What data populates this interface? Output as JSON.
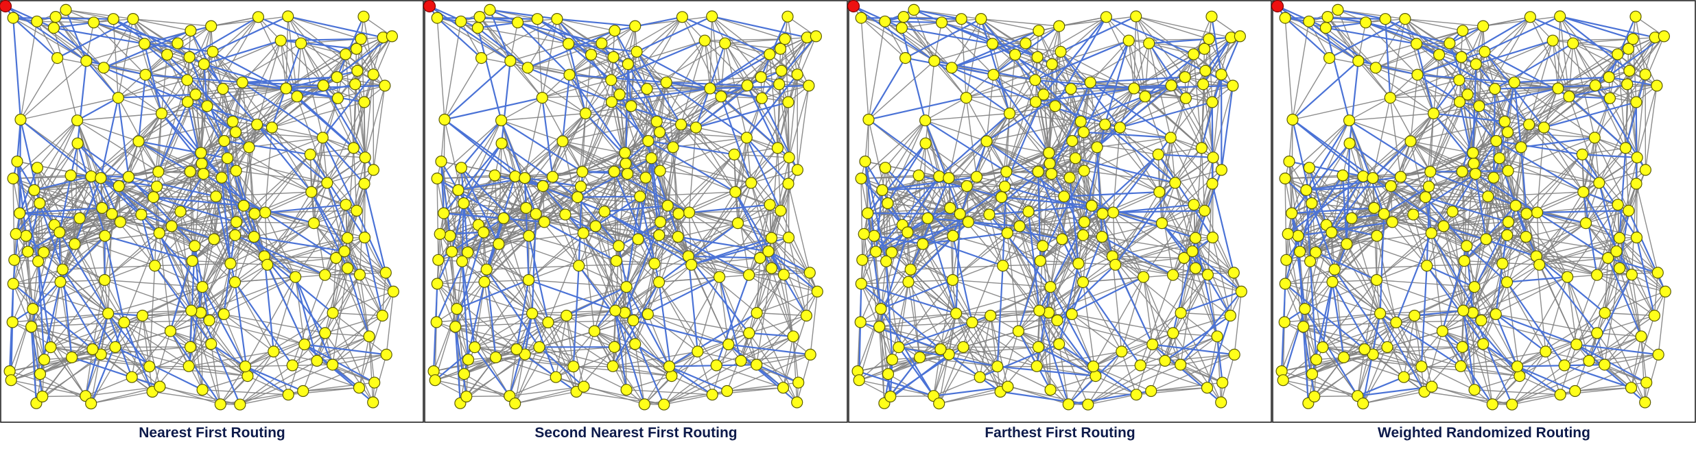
{
  "figure": {
    "panels": [
      {
        "caption": "Nearest First Routing"
      },
      {
        "caption": "Second Nearest First Routing"
      },
      {
        "caption": "Farthest First Routing"
      },
      {
        "caption": "Weighted Randomized Routing"
      }
    ]
  },
  "colors": {
    "node_fill": "#ffff1a",
    "root_node_fill": "#ee1111",
    "graph_edge": "#808080",
    "routing_tree_edge": "#4a72d6",
    "caption_text": "#0d1a4a"
  }
}
